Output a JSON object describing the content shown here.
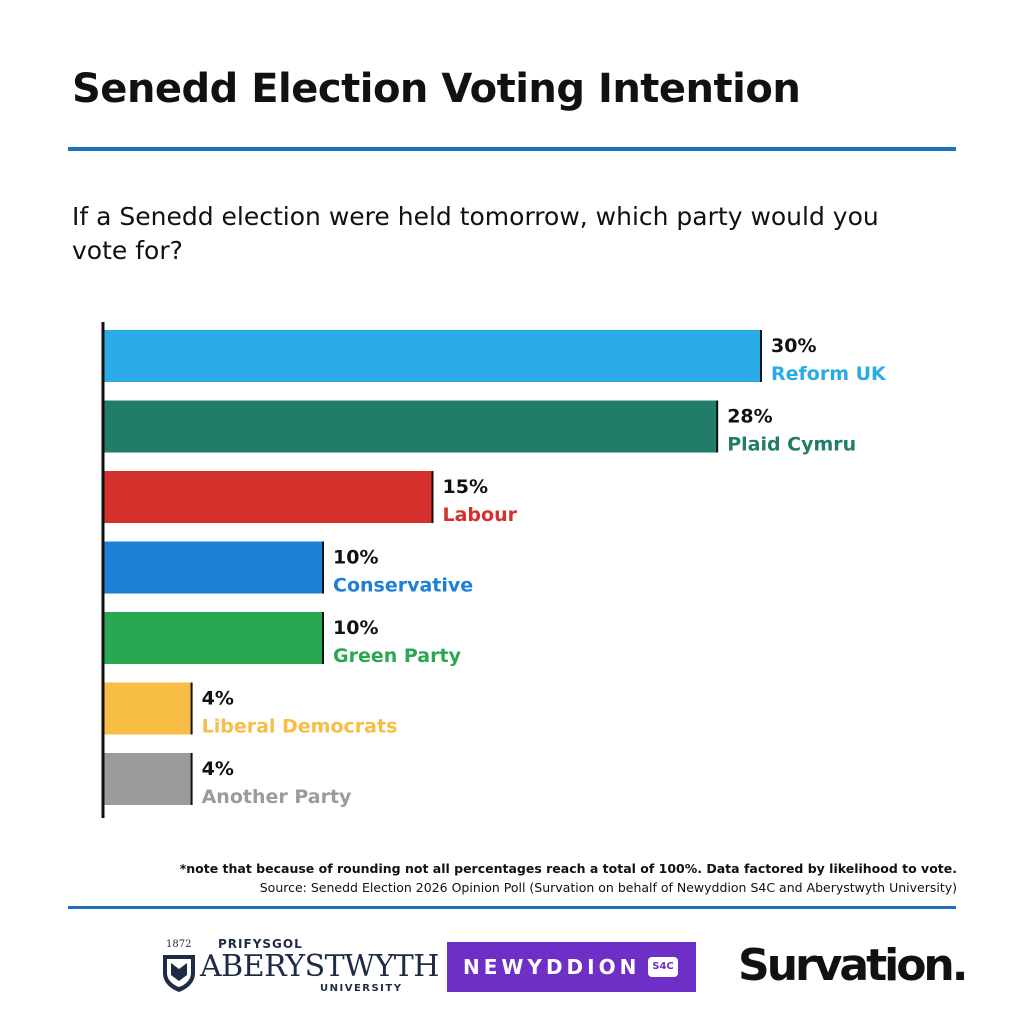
{
  "header": {
    "title": "Senedd Election Voting Intention",
    "subtitle": "If a Senedd election were held tomorrow, which party would you vote for?"
  },
  "chart_data": {
    "type": "bar",
    "orientation": "horizontal",
    "categories": [
      "Reform UK",
      "Plaid Cymru",
      "Labour",
      "Conservative",
      "Green Party",
      "Liberal Democrats",
      "Another Party"
    ],
    "values": [
      30,
      28,
      15,
      10,
      10,
      4,
      4
    ],
    "value_labels": [
      "30%",
      "28%",
      "15%",
      "10%",
      "10%",
      "4%",
      "4%"
    ],
    "colors": [
      "#2aaae6",
      "#217d67",
      "#d4302c",
      "#1e7fd6",
      "#2aa851",
      "#f7bd45",
      "#9b9b9b"
    ],
    "title": "Senedd Election Voting Intention",
    "xlabel": "",
    "ylabel": "",
    "xlim": [
      0,
      32
    ]
  },
  "footer": {
    "note": "*note that because of rounding not all percentages reach a total of 100%. Data factored by likelihood to vote.",
    "source": "Source: Senedd Election 2026 Opinion Poll (Survation on behalf of Newyddion S4C and Aberystwyth University)"
  },
  "logos": {
    "aber_year": "1872",
    "aber_prifysgol": "PRIFYSGOL",
    "aber_name": "ABERYSTWYTH",
    "aber_university": "UNIVERSITY",
    "newyddion": "NEWYDDION",
    "s4c": "S4C",
    "survation": "Survation."
  },
  "colors": {
    "accent_rule": "#1e73b8",
    "newyddion_purple": "#6e2fc6"
  }
}
